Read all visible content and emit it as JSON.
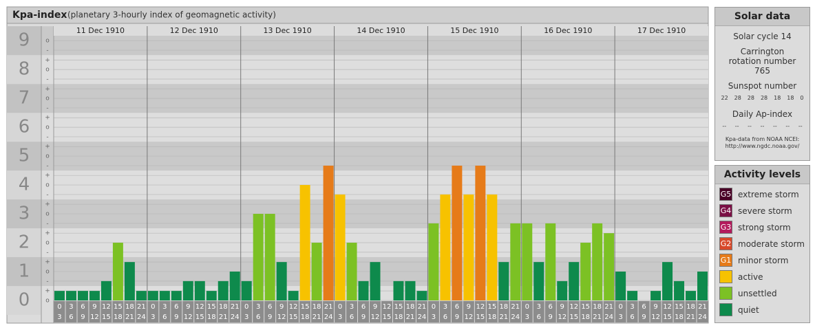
{
  "chart_data": {
    "type": "bar",
    "title": "Kpa-index",
    "subtitle": "(planetary 3-hourly index of geomagnetic activity)",
    "days": [
      "11 Dec 1910",
      "12 Dec 1910",
      "13 Dec 1910",
      "14 Dec 1910",
      "15 Dec 1910",
      "16 Dec 1910",
      "17 Dec 1910"
    ],
    "hours_start": [
      0,
      3,
      6,
      9,
      12,
      15,
      18,
      21
    ],
    "hours_end": [
      3,
      6,
      9,
      12,
      15,
      18,
      21,
      24
    ],
    "values": [
      0.33,
      0.33,
      0.33,
      0.33,
      0.67,
      2,
      1.33,
      0.33,
      0.33,
      0.33,
      0.33,
      0.67,
      0.67,
      0.33,
      0.67,
      1,
      0.67,
      3,
      3,
      1.33,
      0.33,
      4,
      2,
      4.67,
      3.67,
      2,
      0.67,
      1.33,
      0,
      0.67,
      0.67,
      0.33,
      2.67,
      3.67,
      4.67,
      3.67,
      4.67,
      3.67,
      1.33,
      2.67,
      2.67,
      1.33,
      2.67,
      0.67,
      1.33,
      2,
      2.67,
      2.33,
      1,
      0.33,
      0,
      0.33,
      1.33,
      0.67,
      0.33,
      1
    ],
    "colors": [
      "#0e8a4c",
      "#0e8a4c",
      "#0e8a4c",
      "#0e8a4c",
      "#0e8a4c",
      "#7cc124",
      "#0e8a4c",
      "#0e8a4c",
      "#0e8a4c",
      "#0e8a4c",
      "#0e8a4c",
      "#0e8a4c",
      "#0e8a4c",
      "#0e8a4c",
      "#0e8a4c",
      "#0e8a4c",
      "#0e8a4c",
      "#7cc124",
      "#7cc124",
      "#0e8a4c",
      "#0e8a4c",
      "#f7c200",
      "#7cc124",
      "#e67b19",
      "#f7c200",
      "#7cc124",
      "#0e8a4c",
      "#0e8a4c",
      "#0e8a4c",
      "#0e8a4c",
      "#0e8a4c",
      "#0e8a4c",
      "#7cc124",
      "#f7c200",
      "#e67b19",
      "#f7c200",
      "#e67b19",
      "#f7c200",
      "#0e8a4c",
      "#7cc124",
      "#7cc124",
      "#0e8a4c",
      "#7cc124",
      "#0e8a4c",
      "#0e8a4c",
      "#7cc124",
      "#7cc124",
      "#7cc124",
      "#0e8a4c",
      "#0e8a4c",
      "#0e8a4c",
      "#0e8a4c",
      "#0e8a4c",
      "#0e8a4c",
      "#0e8a4c",
      "#0e8a4c"
    ],
    "ylim": [
      0,
      9.17
    ],
    "yticks": [
      0,
      1,
      2,
      3,
      4,
      5,
      6,
      7,
      8,
      9
    ],
    "yminor_ticks": [
      {
        "value": 0,
        "label": "o"
      },
      {
        "value": 0.33,
        "label": "+"
      },
      {
        "value": 0.67,
        "label": "-"
      },
      {
        "value": 1,
        "label": "o"
      },
      {
        "value": 1.33,
        "label": "+"
      },
      {
        "value": 1.67,
        "label": "-"
      },
      {
        "value": 2,
        "label": "o"
      },
      {
        "value": 2.33,
        "label": "+"
      },
      {
        "value": 2.67,
        "label": "-"
      },
      {
        "value": 3,
        "label": "o"
      },
      {
        "value": 3.33,
        "label": "+"
      },
      {
        "value": 3.67,
        "label": "-"
      },
      {
        "value": 4,
        "label": "o"
      },
      {
        "value": 4.33,
        "label": "+"
      },
      {
        "value": 4.67,
        "label": "-"
      },
      {
        "value": 5,
        "label": "o"
      },
      {
        "value": 5.33,
        "label": "+"
      },
      {
        "value": 5.67,
        "label": "-"
      },
      {
        "value": 6,
        "label": "o"
      },
      {
        "value": 6.33,
        "label": "+"
      },
      {
        "value": 6.67,
        "label": "-"
      },
      {
        "value": 7,
        "label": "o"
      },
      {
        "value": 7.33,
        "label": "+"
      },
      {
        "value": 7.67,
        "label": "-"
      },
      {
        "value": 8,
        "label": "o"
      },
      {
        "value": 8.33,
        "label": "+"
      },
      {
        "value": 8.67,
        "label": "-"
      },
      {
        "value": 9,
        "label": "o"
      }
    ],
    "grid": true
  },
  "solar_data": {
    "title": "Solar data",
    "cycle": "Solar cycle 14",
    "carrington": "Carrington rotation number 765",
    "sunspot_title": "Sunspot number",
    "sunspot_values": [
      22,
      28,
      28,
      28,
      18,
      18,
      0
    ],
    "ap_title": "Daily Ap-index",
    "ap_values": [
      "--",
      "--",
      "--",
      "--",
      "--",
      "--",
      "--"
    ],
    "source": "Kpa-data from NOAA NCEI:",
    "source_url": "http://www.ngdc.noaa.gov/"
  },
  "activity_levels": {
    "title": "Activity levels",
    "items": [
      {
        "code": "G5",
        "name": "extreme storm",
        "color": "#4a0026"
      },
      {
        "code": "G4",
        "name": "severe storm",
        "color": "#7a0f44"
      },
      {
        "code": "G3",
        "name": "strong storm",
        "color": "#b31a5c"
      },
      {
        "code": "G2",
        "name": "moderate storm",
        "color": "#d8482a"
      },
      {
        "code": "G1",
        "name": "minor storm",
        "color": "#e67b19"
      },
      {
        "name": "active",
        "color": "#f7c200"
      },
      {
        "name": "unsettled",
        "color": "#7cc124"
      },
      {
        "name": "quiet",
        "color": "#0e8a4c"
      }
    ]
  }
}
